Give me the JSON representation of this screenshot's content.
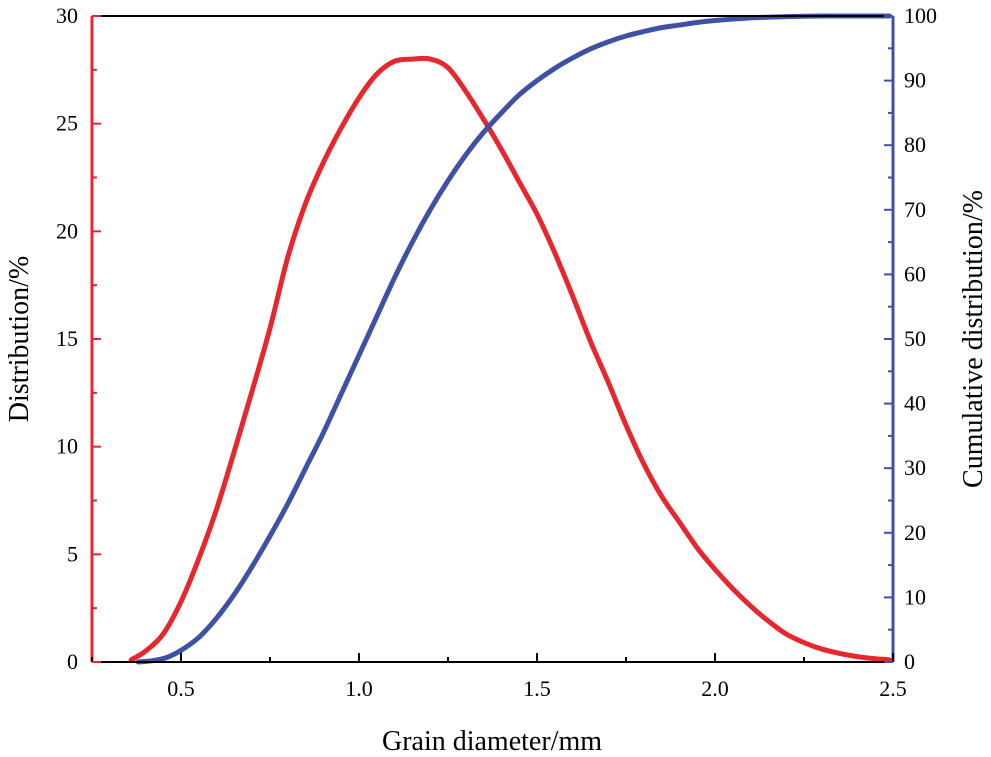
{
  "chart_data": {
    "type": "line",
    "title": "",
    "xlabel": "Grain diameter/mm",
    "ylabel_left": "Distribution/%",
    "ylabel_right": "Cumulative distribution/%",
    "xlim": [
      0.25,
      2.5
    ],
    "ylim_left": [
      0,
      30
    ],
    "ylim_right": [
      0,
      100
    ],
    "x_ticks": [
      0.5,
      1.0,
      1.5,
      2.0,
      2.5
    ],
    "x_tick_labels": [
      "0.5",
      "1.0",
      "1.5",
      "2.0",
      "2.5"
    ],
    "y_left_ticks": [
      0,
      5,
      10,
      15,
      20,
      25,
      30
    ],
    "y_left_tick_labels": [
      "0",
      "5",
      "10",
      "15",
      "20",
      "25",
      "30"
    ],
    "y_right_ticks": [
      0,
      10,
      20,
      30,
      40,
      50,
      60,
      70,
      80,
      90,
      100
    ],
    "y_right_tick_labels": [
      "0",
      "10",
      "20",
      "30",
      "40",
      "50",
      "60",
      "70",
      "80",
      "90",
      "100"
    ],
    "grid": false,
    "series": [
      {
        "name": "Distribution",
        "axis": "left",
        "color": "#e8262d",
        "x": [
          0.36,
          0.4,
          0.45,
          0.5,
          0.55,
          0.6,
          0.65,
          0.7,
          0.75,
          0.8,
          0.85,
          0.9,
          0.95,
          1.0,
          1.05,
          1.1,
          1.15,
          1.2,
          1.25,
          1.3,
          1.35,
          1.4,
          1.45,
          1.5,
          1.55,
          1.6,
          1.65,
          1.7,
          1.75,
          1.8,
          1.85,
          1.9,
          1.95,
          2.0,
          2.05,
          2.1,
          2.15,
          2.2,
          2.25,
          2.3,
          2.35,
          2.4,
          2.45,
          2.49
        ],
        "y": [
          0.1,
          0.5,
          1.3,
          2.8,
          4.8,
          7.1,
          9.8,
          12.6,
          15.5,
          18.8,
          21.3,
          23.2,
          24.8,
          26.2,
          27.3,
          27.9,
          28.0,
          28.0,
          27.6,
          26.5,
          25.2,
          23.8,
          22.3,
          20.8,
          19.0,
          17.0,
          14.9,
          13.0,
          11.0,
          9.2,
          7.7,
          6.5,
          5.3,
          4.3,
          3.4,
          2.6,
          1.9,
          1.3,
          0.9,
          0.6,
          0.4,
          0.25,
          0.15,
          0.1
        ]
      },
      {
        "name": "Cumulative distribution",
        "axis": "right",
        "color": "#3f51a5",
        "x": [
          0.38,
          0.42,
          0.46,
          0.5,
          0.55,
          0.6,
          0.65,
          0.7,
          0.75,
          0.8,
          0.85,
          0.9,
          0.95,
          1.0,
          1.05,
          1.1,
          1.15,
          1.2,
          1.25,
          1.3,
          1.35,
          1.4,
          1.45,
          1.5,
          1.55,
          1.6,
          1.65,
          1.7,
          1.75,
          1.8,
          1.85,
          1.9,
          1.95,
          2.0,
          2.1,
          2.2,
          2.3,
          2.4,
          2.49
        ],
        "y": [
          0,
          0.2,
          0.7,
          1.8,
          3.8,
          6.8,
          10.5,
          14.8,
          19.5,
          24.5,
          30.0,
          35.5,
          41.5,
          47.5,
          53.5,
          59.5,
          65.0,
          70.0,
          74.5,
          78.5,
          82.0,
          85.0,
          87.8,
          90.0,
          91.9,
          93.5,
          94.9,
          96.0,
          96.9,
          97.6,
          98.2,
          98.6,
          99.0,
          99.3,
          99.7,
          99.9,
          100,
          100,
          100
        ]
      }
    ]
  }
}
